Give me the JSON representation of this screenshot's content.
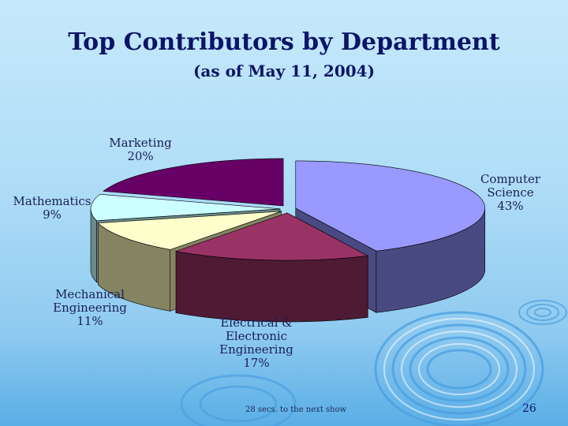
{
  "slide": {
    "title": "Top Contributors by Department",
    "subtitle": "(as of May 11, 2004)",
    "footer_note": "28 secs. to the next show",
    "page_number": "26"
  },
  "chart_data": {
    "type": "pie",
    "title": "Top Contributors by Department",
    "subtitle": "(as of May 11, 2004)",
    "style": "3d-exploded",
    "slices": [
      {
        "label": "Computer Science",
        "label_lines": [
          "Computer",
          "Science"
        ],
        "value": 43,
        "value_label": "43%",
        "color": "#9999ff",
        "side_color": "#4a4a82"
      },
      {
        "label": "Electrical & Electronic Engineering",
        "label_lines": [
          "Electrical &",
          "Electronic",
          "Engineering"
        ],
        "value": 17,
        "value_label": "17%",
        "color": "#993366",
        "side_color": "#4e1a34"
      },
      {
        "label": "Mechanical Engineering",
        "label_lines": [
          "Mechanical",
          "Engineering"
        ],
        "value": 11,
        "value_label": "11%",
        "color": "#ffffcc",
        "side_color": "#848462"
      },
      {
        "label": "Mathematics",
        "label_lines": [
          "Mathematics"
        ],
        "value": 9,
        "value_label": "9%",
        "color": "#ccffff",
        "side_color": "#6a8a8a"
      },
      {
        "label": "Marketing",
        "label_lines": [
          "Marketing"
        ],
        "value": 20,
        "value_label": "20%",
        "color": "#660066",
        "side_color": "#330033"
      }
    ]
  }
}
